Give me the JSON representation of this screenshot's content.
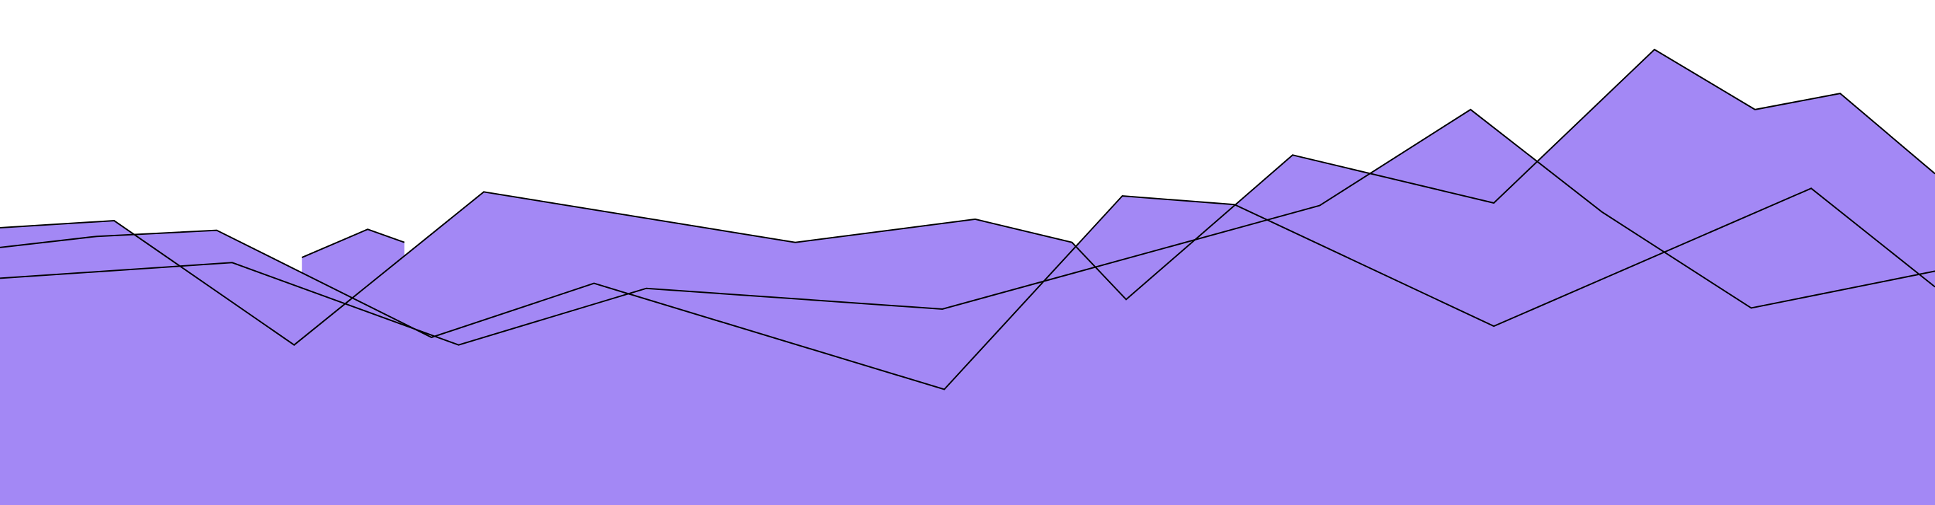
{
  "chart_data": {
    "type": "area",
    "title": "",
    "xlabel": "",
    "ylabel": "",
    "xlim": [
      0,
      100
    ],
    "ylim": [
      0,
      100
    ],
    "grid": false,
    "legend": "none",
    "axes_visible": false,
    "fill_color": "#a388f5",
    "line_color": "#000000",
    "series": [
      {
        "points": [
          [
            0,
            54.9
          ],
          [
            5.9,
            56.3
          ],
          [
            15.2,
            31.7
          ],
          [
            25,
            62
          ],
          [
            41.1,
            52
          ],
          [
            50.4,
            56.6
          ],
          [
            55.4,
            52
          ],
          [
            58.2,
            40.7
          ],
          [
            66.8,
            69.3
          ],
          [
            77.2,
            59.8
          ],
          [
            85.5,
            90.2
          ],
          [
            90.7,
            78.3
          ],
          [
            95.1,
            81.5
          ],
          [
            100,
            65.6
          ]
        ]
      },
      {
        "points": [
          [
            0,
            51
          ],
          [
            5,
            53.2
          ],
          [
            11.2,
            54.4
          ],
          [
            22.3,
            33.2
          ],
          [
            30.7,
            43.9
          ],
          [
            48.8,
            22.9
          ],
          [
            58,
            61.2
          ],
          [
            63.8,
            59.5
          ],
          [
            77.2,
            35.4
          ],
          [
            93.6,
            62.7
          ],
          [
            100,
            43.2
          ]
        ]
      },
      {
        "points": [
          [
            0,
            44.9
          ],
          [
            12,
            48
          ],
          [
            23.7,
            31.7
          ],
          [
            33.4,
            42.9
          ],
          [
            48.7,
            38.8
          ],
          [
            68.2,
            59.3
          ],
          [
            76,
            78.3
          ],
          [
            82.8,
            58
          ],
          [
            90.5,
            39
          ],
          [
            100,
            46.3
          ]
        ]
      },
      {
        "points": [
          [
            15.6,
            49
          ],
          [
            19,
            54.6
          ],
          [
            20.9,
            52
          ]
        ]
      }
    ]
  }
}
